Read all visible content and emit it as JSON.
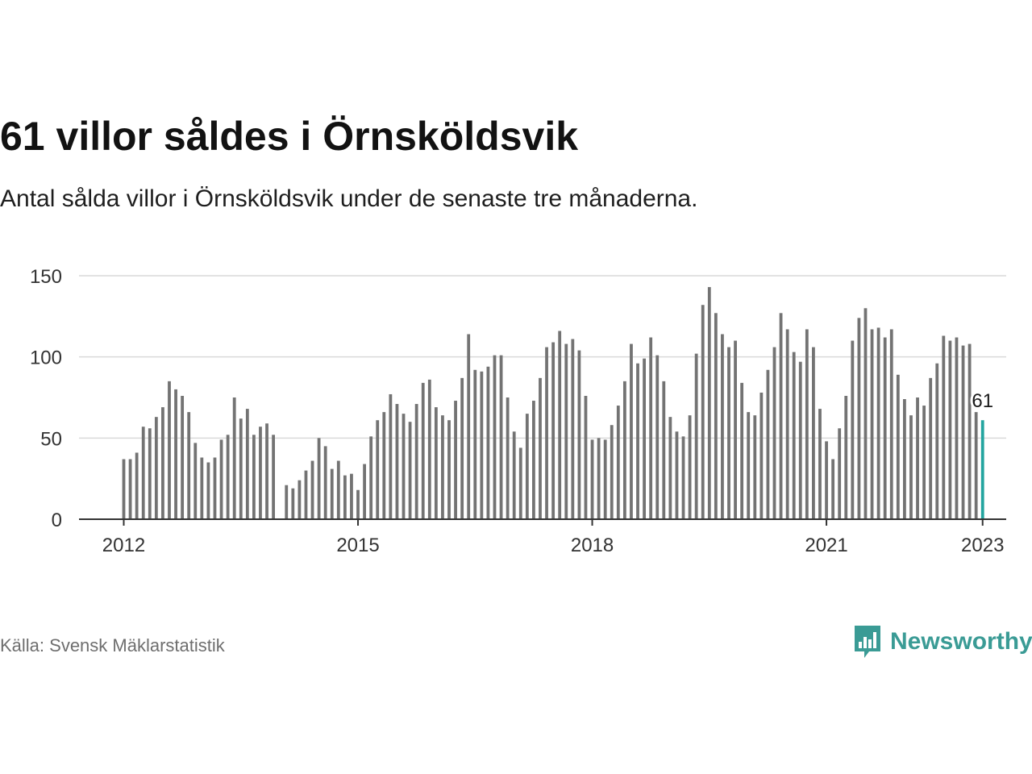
{
  "title": "61 villor såldes i Örnsköldsvik",
  "subtitle": "Antal sålda villor i Örnsköldsvik under de senaste tre månaderna.",
  "source": "Källa: Svensk Mäklarstatistik",
  "brand": {
    "name": "Newsworthy",
    "icon": "newsworthy-logo-icon",
    "color": "#3a9b95"
  },
  "chart_data": {
    "type": "bar",
    "start": "2012-01",
    "end": "2023-01",
    "ylim": [
      0,
      150
    ],
    "yticks": [
      0,
      50,
      100,
      150
    ],
    "xticks": [
      {
        "label": "2012",
        "index": 0
      },
      {
        "label": "2015",
        "index": 36
      },
      {
        "label": "2018",
        "index": 72
      },
      {
        "label": "2021",
        "index": 108
      },
      {
        "label": "2023",
        "index": 132
      }
    ],
    "values": [
      37,
      37,
      41,
      57,
      56,
      63,
      69,
      85,
      80,
      76,
      66,
      47,
      38,
      35,
      38,
      49,
      52,
      75,
      62,
      68,
      52,
      57,
      59,
      52,
      null,
      21,
      19,
      24,
      30,
      36,
      50,
      45,
      31,
      36,
      27,
      28,
      18,
      34,
      51,
      61,
      66,
      77,
      71,
      65,
      60,
      71,
      84,
      86,
      69,
      64,
      61,
      73,
      87,
      114,
      92,
      91,
      94,
      101,
      101,
      75,
      54,
      44,
      65,
      73,
      87,
      106,
      109,
      116,
      108,
      111,
      104,
      76,
      49,
      50,
      49,
      58,
      70,
      85,
      108,
      96,
      99,
      112,
      101,
      85,
      63,
      54,
      51,
      64,
      102,
      132,
      143,
      127,
      114,
      106,
      110,
      84,
      66,
      64,
      78,
      92,
      106,
      127,
      117,
      103,
      97,
      117,
      106,
      68,
      48,
      37,
      56,
      76,
      110,
      124,
      130,
      117,
      118,
      112,
      117,
      89,
      74,
      64,
      75,
      70,
      87,
      96,
      113,
      110,
      112,
      107,
      108,
      66,
      61
    ],
    "bar_color": "#737373",
    "highlight_color": "#24a5a0",
    "highlight_index": 132,
    "highlight_label": "61",
    "grid": true
  }
}
